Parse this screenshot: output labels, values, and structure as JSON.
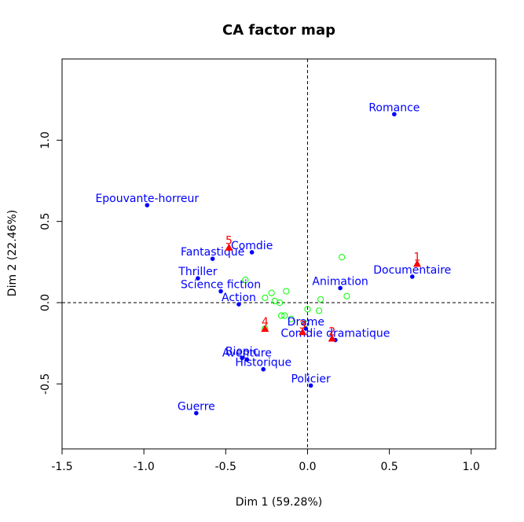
{
  "chart_data": {
    "type": "scatter",
    "title": "CA factor map",
    "xlabel": "Dim 1 (59.28%)",
    "ylabel": "Dim 2 (22.46%)",
    "xlim": [
      -1.5,
      1.15
    ],
    "ylim": [
      -0.9,
      1.5
    ],
    "xticks": [
      -1.5,
      -1.0,
      -0.5,
      0.0,
      0.5,
      1.0
    ],
    "xtick_labels": [
      "-1.5",
      "-1.0",
      "-0.5",
      "0.0",
      "0.5",
      "1.0"
    ],
    "yticks": [
      -0.5,
      0.0,
      0.5,
      1.0
    ],
    "ytick_labels": [
      "-0.5",
      "0.0",
      "0.5",
      "1.0"
    ],
    "reference_lines": [
      {
        "axis": "x",
        "value": 0,
        "style": "dashed"
      },
      {
        "axis": "y",
        "value": 0,
        "style": "dashed"
      }
    ],
    "colors": {
      "labeled_points": "#0000ff",
      "triangle_points": "#ff0000",
      "open_points": "#00ff00"
    },
    "series": [
      {
        "marker": "filled-circle",
        "color": "#0000ff",
        "points": [
          {
            "label": "Romance",
            "x": 0.53,
            "y": 1.16
          },
          {
            "label": "Epouvante-horreur",
            "x": -0.98,
            "y": 0.6
          },
          {
            "label": "Comdie",
            "x": -0.34,
            "y": 0.31
          },
          {
            "label": "Fantastique",
            "x": -0.58,
            "y": 0.27
          },
          {
            "label": "Thriller",
            "x": -0.67,
            "y": 0.15
          },
          {
            "label": "Science fiction",
            "x": -0.53,
            "y": 0.07
          },
          {
            "label": "Action",
            "x": -0.42,
            "y": -0.01
          },
          {
            "label": "Animation",
            "x": 0.2,
            "y": 0.09
          },
          {
            "label": "Documentaire",
            "x": 0.64,
            "y": 0.16
          },
          {
            "label": "Drame",
            "x": -0.01,
            "y": -0.16
          },
          {
            "label": "Comdie dramatique",
            "x": 0.17,
            "y": -0.23
          },
          {
            "label": "Biopic",
            "x": -0.4,
            "y": -0.34
          },
          {
            "label": "Aventure",
            "x": -0.37,
            "y": -0.35
          },
          {
            "label": "Historique",
            "x": -0.27,
            "y": -0.41
          },
          {
            "label": "Policier",
            "x": 0.02,
            "y": -0.51
          },
          {
            "label": "Guerre",
            "x": -0.68,
            "y": -0.68
          }
        ]
      },
      {
        "marker": "filled-triangle",
        "color": "#ff0000",
        "points": [
          {
            "label": "1",
            "x": 0.67,
            "y": 0.24
          },
          {
            "label": "2",
            "x": 0.15,
            "y": -0.22
          },
          {
            "label": "3",
            "x": -0.03,
            "y": -0.18
          },
          {
            "label": "4",
            "x": -0.26,
            "y": -0.16
          },
          {
            "label": "5",
            "x": -0.48,
            "y": 0.34
          }
        ]
      },
      {
        "marker": "open-circle",
        "color": "#00ff00",
        "points": [
          {
            "x": 0.21,
            "y": 0.28
          },
          {
            "x": -0.38,
            "y": 0.14
          },
          {
            "x": -0.13,
            "y": 0.07
          },
          {
            "x": -0.22,
            "y": 0.06
          },
          {
            "x": -0.26,
            "y": 0.03
          },
          {
            "x": -0.2,
            "y": 0.01
          },
          {
            "x": -0.17,
            "y": 0.0
          },
          {
            "x": 0.24,
            "y": 0.04
          },
          {
            "x": 0.08,
            "y": 0.02
          },
          {
            "x": 0.0,
            "y": -0.04
          },
          {
            "x": 0.07,
            "y": -0.05
          },
          {
            "x": -0.16,
            "y": -0.08
          },
          {
            "x": -0.14,
            "y": -0.08
          },
          {
            "x": -0.1,
            "y": -0.1
          },
          {
            "x": -0.01,
            "y": -0.13
          },
          {
            "x": -0.26,
            "y": -0.16
          }
        ]
      }
    ]
  }
}
